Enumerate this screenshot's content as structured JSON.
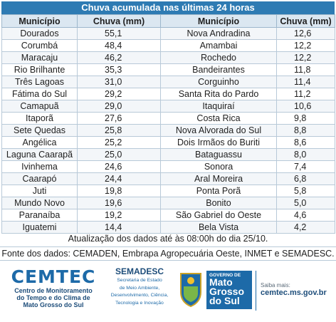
{
  "title": "Chuva acumulada nas últimas 24 horas",
  "columns": [
    "Município",
    "Chuva (mm)",
    "Município",
    "Chuva (mm)"
  ],
  "rows": [
    [
      "Dourados",
      "55,1",
      "Nova Andradina",
      "12,6"
    ],
    [
      "Corumbá",
      "48,4",
      "Amambai",
      "12,2"
    ],
    [
      "Maracaju",
      "46,2",
      "Rochedo",
      "12,2"
    ],
    [
      "Rio Brilhante",
      "35,3",
      "Bandeirantes",
      "11,8"
    ],
    [
      "Três Lagoas",
      "31,0",
      "Corguinho",
      "11,4"
    ],
    [
      "Fátima do Sul",
      "29,2",
      "Santa Rita do Pardo",
      "11,2"
    ],
    [
      "Camapuã",
      "29,0",
      "Itaquiraí",
      "10,6"
    ],
    [
      "Itaporã",
      "27,6",
      "Costa Rica",
      "9,8"
    ],
    [
      "Sete Quedas",
      "25,8",
      "Nova Alvorada do Sul",
      "8,8"
    ],
    [
      "Angélica",
      "25,2",
      "Dois Irmãos do Buriti",
      "8,6"
    ],
    [
      "Laguna Caarapã",
      "25,0",
      "Bataguassu",
      "8,0"
    ],
    [
      "Ivinhema",
      "24,6",
      "Sonora",
      "7,4"
    ],
    [
      "Caarapó",
      "24,4",
      "Aral Moreira",
      "6,8"
    ],
    [
      "Juti",
      "19,8",
      "Ponta Porã",
      "5,8"
    ],
    [
      "Mundo Novo",
      "19,6",
      "Bonito",
      "5,0"
    ],
    [
      "Paranaíba",
      "19,2",
      "São Gabriel do Oeste",
      "4,6"
    ],
    [
      "Iguatemi",
      "14,4",
      "Bela Vista",
      "4,2"
    ]
  ],
  "update_note": "Atualização dos dados até às 08:00h do dia 25/10.",
  "source_note": "Fonte dos dados: CEMADEN, Embrapa Agropecuária Oeste, INMET e SEMADESC.",
  "footer": {
    "cemtec_logo": "CEMTEC",
    "cemtec_line1": "Centro de Monitoramento",
    "cemtec_line2": "do Tempo e do Clima de",
    "cemtec_line3": "Mato Grosso do Sul",
    "semadesc_name": "SEMADESC",
    "semadesc_line1": "Secretaria de Estado",
    "semadesc_line2": "de Meio Ambiente,",
    "semadesc_line3": "Desenvolvimento, Ciência,",
    "semadesc_line4": "Tecnologia e Inovação",
    "gov_label": "GOVERNO DE",
    "gov_line1": "Mato",
    "gov_line2": "Grosso",
    "gov_line3": "do Sul",
    "saiba_label": "Saiba mais:",
    "saiba_url": "cemtec.ms.gov.br"
  },
  "colors": {
    "header_bar": "#2e7bb3",
    "brand_blue": "#1d6aa8",
    "brand_green": "#7ab648"
  }
}
